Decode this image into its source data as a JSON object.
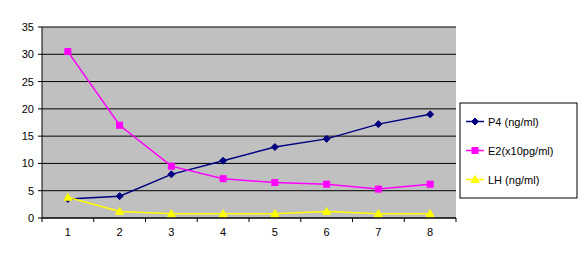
{
  "chart_data": {
    "type": "line",
    "categories": [
      "1",
      "2",
      "3",
      "4",
      "5",
      "6",
      "7",
      "8"
    ],
    "series": [
      {
        "name": "P4 (ng/ml)",
        "color": "#000080",
        "marker": "diamond",
        "values": [
          3.5,
          4,
          8,
          10.5,
          13,
          14.5,
          17.2,
          19
        ]
      },
      {
        "name": "E2(x10pg/ml)",
        "color": "#ff00ff",
        "marker": "square",
        "values": [
          30.5,
          17,
          9.5,
          7.2,
          6.5,
          6.2,
          5.3,
          6.2
        ]
      },
      {
        "name": "LH (ng/ml)",
        "color": "#ffff00",
        "marker": "triangle",
        "values": [
          3.8,
          1.2,
          0.8,
          0.8,
          0.8,
          1.2,
          0.8,
          0.8
        ]
      }
    ],
    "ylim": [
      0,
      35
    ],
    "yticks": [
      0,
      5,
      10,
      15,
      20,
      25,
      30,
      35
    ],
    "grid": true,
    "legend": "right"
  }
}
